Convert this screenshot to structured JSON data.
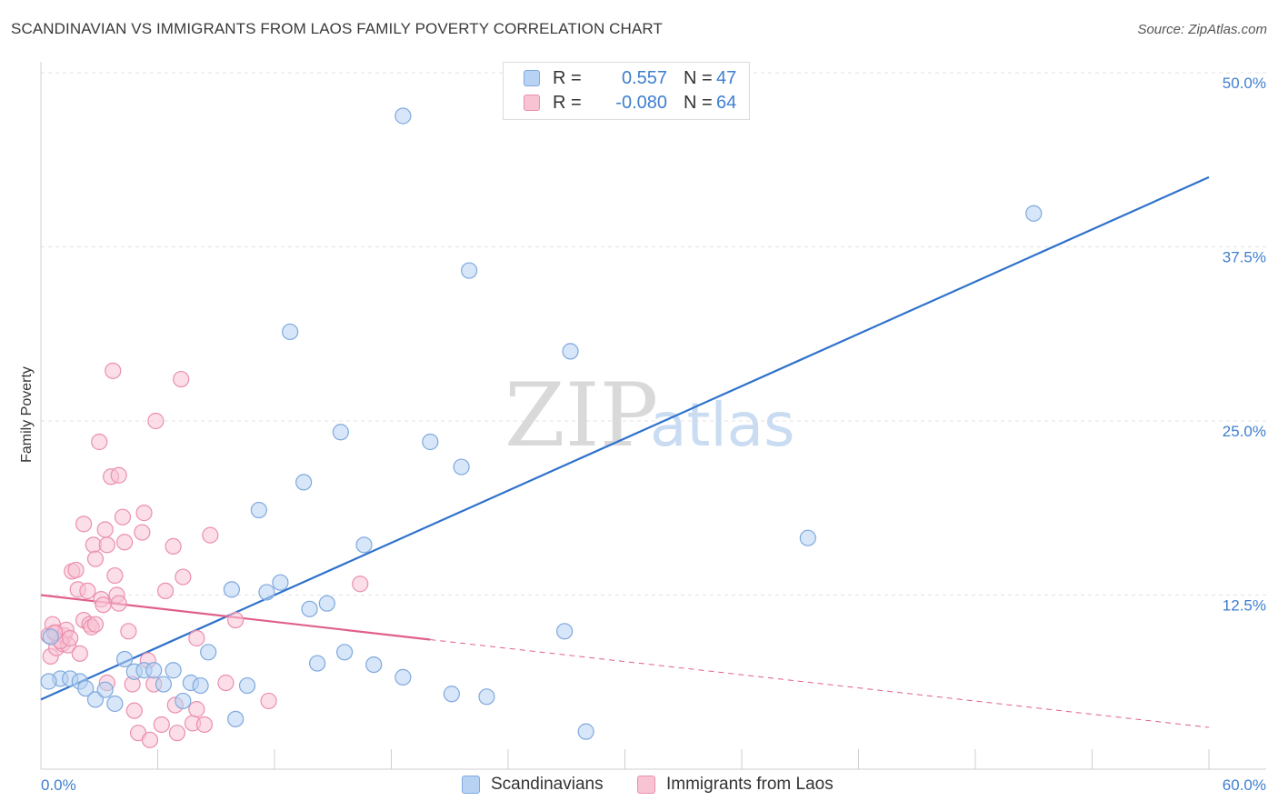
{
  "title": "SCANDINAVIAN VS IMMIGRANTS FROM LAOS FAMILY POVERTY CORRELATION CHART",
  "source": "Source: ZipAtlas.com",
  "watermark": {
    "zip": "ZIP",
    "atlas": "atlas"
  },
  "colors": {
    "blue_fill": "#b7d2f3",
    "blue_stroke": "#7fa9de",
    "blue_line": "#2f72cc",
    "pink_fill": "#f8c3d3",
    "pink_stroke": "#eb8fae",
    "pink_line": "#e0608a",
    "grid": "#e3e3e3",
    "tick_text": "#3f7fd0"
  },
  "legend": {
    "rows": [
      {
        "r_label": "R =",
        "r_value": "0.557",
        "n_label": "N =",
        "n_value": "47"
      },
      {
        "r_label": "R =",
        "r_value": "-0.080",
        "n_label": "N =",
        "n_value": "64"
      }
    ]
  },
  "bottom_legend": {
    "series1": "Scandinavians",
    "series2": "Immigrants from Laos"
  },
  "chart_data": {
    "type": "scatter",
    "ylabel": "Family Poverty",
    "xlim": [
      0,
      60
    ],
    "ylim": [
      0,
      50
    ],
    "x_tick_labels": [
      {
        "value": 0,
        "label": "0.0%"
      },
      {
        "value": 60,
        "label": "60.0%"
      }
    ],
    "y_tick_labels": [
      {
        "value": 12.5,
        "label": "12.5%"
      },
      {
        "value": 25,
        "label": "25.0%"
      },
      {
        "value": 37.5,
        "label": "37.5%"
      },
      {
        "value": 50,
        "label": "50.0%"
      }
    ],
    "grid": true,
    "series": [
      {
        "name": "Scandinavians",
        "color": "#b7d2f3",
        "points": [
          [
            0.5,
            9.5
          ],
          [
            1.0,
            6.5
          ],
          [
            1.5,
            6.5
          ],
          [
            2.0,
            6.3
          ],
          [
            2.3,
            5.8
          ],
          [
            2.8,
            5.0
          ],
          [
            3.3,
            5.7
          ],
          [
            3.8,
            4.7
          ],
          [
            4.3,
            7.9
          ],
          [
            4.8,
            7.0
          ],
          [
            5.3,
            7.1
          ],
          [
            5.8,
            7.1
          ],
          [
            6.3,
            6.1
          ],
          [
            6.8,
            7.1
          ],
          [
            7.3,
            4.9
          ],
          [
            7.7,
            6.2
          ],
          [
            8.2,
            6.0
          ],
          [
            8.6,
            8.4
          ],
          [
            9.8,
            12.9
          ],
          [
            10.0,
            3.6
          ],
          [
            10.6,
            6.0
          ],
          [
            11.2,
            18.6
          ],
          [
            11.6,
            12.7
          ],
          [
            12.3,
            13.4
          ],
          [
            12.8,
            31.4
          ],
          [
            13.5,
            20.6
          ],
          [
            13.8,
            11.5
          ],
          [
            14.2,
            7.6
          ],
          [
            14.7,
            11.9
          ],
          [
            15.4,
            24.2
          ],
          [
            15.6,
            8.4
          ],
          [
            16.6,
            16.1
          ],
          [
            17.1,
            7.5
          ],
          [
            18.6,
            6.6
          ],
          [
            18.6,
            46.9
          ],
          [
            20.0,
            23.5
          ],
          [
            21.1,
            5.4
          ],
          [
            21.6,
            21.7
          ],
          [
            22.0,
            35.8
          ],
          [
            22.9,
            5.2
          ],
          [
            25.3,
            50.0
          ],
          [
            26.9,
            9.9
          ],
          [
            27.2,
            30.0
          ],
          [
            28.0,
            2.7
          ],
          [
            39.4,
            16.6
          ],
          [
            51.0,
            39.9
          ],
          [
            0.4,
            6.3
          ]
        ]
      },
      {
        "name": "Immigrants from Laos",
        "color": "#f8c3d3",
        "points": [
          [
            0.4,
            9.6
          ],
          [
            0.5,
            8.1
          ],
          [
            0.6,
            10.4
          ],
          [
            0.8,
            8.7
          ],
          [
            0.8,
            9.8
          ],
          [
            1.1,
            9.0
          ],
          [
            1.2,
            9.6
          ],
          [
            1.3,
            10.0
          ],
          [
            1.4,
            8.9
          ],
          [
            1.6,
            14.2
          ],
          [
            1.8,
            14.3
          ],
          [
            1.9,
            12.9
          ],
          [
            2.0,
            8.3
          ],
          [
            2.2,
            17.6
          ],
          [
            2.2,
            10.7
          ],
          [
            2.4,
            12.8
          ],
          [
            2.5,
            10.4
          ],
          [
            2.6,
            10.2
          ],
          [
            2.7,
            16.1
          ],
          [
            2.8,
            15.1
          ],
          [
            2.8,
            10.4
          ],
          [
            3.0,
            23.5
          ],
          [
            3.1,
            12.2
          ],
          [
            3.2,
            11.8
          ],
          [
            3.3,
            17.2
          ],
          [
            3.4,
            16.1
          ],
          [
            3.4,
            6.2
          ],
          [
            3.6,
            21.0
          ],
          [
            3.7,
            28.6
          ],
          [
            3.8,
            13.9
          ],
          [
            3.9,
            12.5
          ],
          [
            4.0,
            11.9
          ],
          [
            4.0,
            21.1
          ],
          [
            4.2,
            18.1
          ],
          [
            4.3,
            16.3
          ],
          [
            4.5,
            9.9
          ],
          [
            4.7,
            6.1
          ],
          [
            4.8,
            4.2
          ],
          [
            5.0,
            2.6
          ],
          [
            5.2,
            17.0
          ],
          [
            5.3,
            18.4
          ],
          [
            5.5,
            7.8
          ],
          [
            5.6,
            2.1
          ],
          [
            5.8,
            6.1
          ],
          [
            5.9,
            25.0
          ],
          [
            6.2,
            3.2
          ],
          [
            6.4,
            12.8
          ],
          [
            6.8,
            16.0
          ],
          [
            6.9,
            4.6
          ],
          [
            7.0,
            2.6
          ],
          [
            7.2,
            28.0
          ],
          [
            7.3,
            13.8
          ],
          [
            7.8,
            3.3
          ],
          [
            8.0,
            9.4
          ],
          [
            8.0,
            4.3
          ],
          [
            8.4,
            3.2
          ],
          [
            8.7,
            16.8
          ],
          [
            9.5,
            6.2
          ],
          [
            10.0,
            10.7
          ],
          [
            11.7,
            4.9
          ],
          [
            16.4,
            13.3
          ],
          [
            1.0,
            9.2
          ],
          [
            0.7,
            9.8
          ],
          [
            1.5,
            9.4
          ]
        ]
      }
    ],
    "trendlines": [
      {
        "series": "Scandinavians",
        "x": [
          0,
          60
        ],
        "y": [
          5.0,
          42.5
        ],
        "style": "solid"
      },
      {
        "series": "Immigrants from Laos",
        "x": [
          0,
          20
        ],
        "y": [
          12.5,
          9.3
        ],
        "style": "solid"
      },
      {
        "series": "Immigrants from Laos",
        "x": [
          20,
          60
        ],
        "y": [
          9.3,
          3.0
        ],
        "style": "dashed"
      }
    ]
  }
}
